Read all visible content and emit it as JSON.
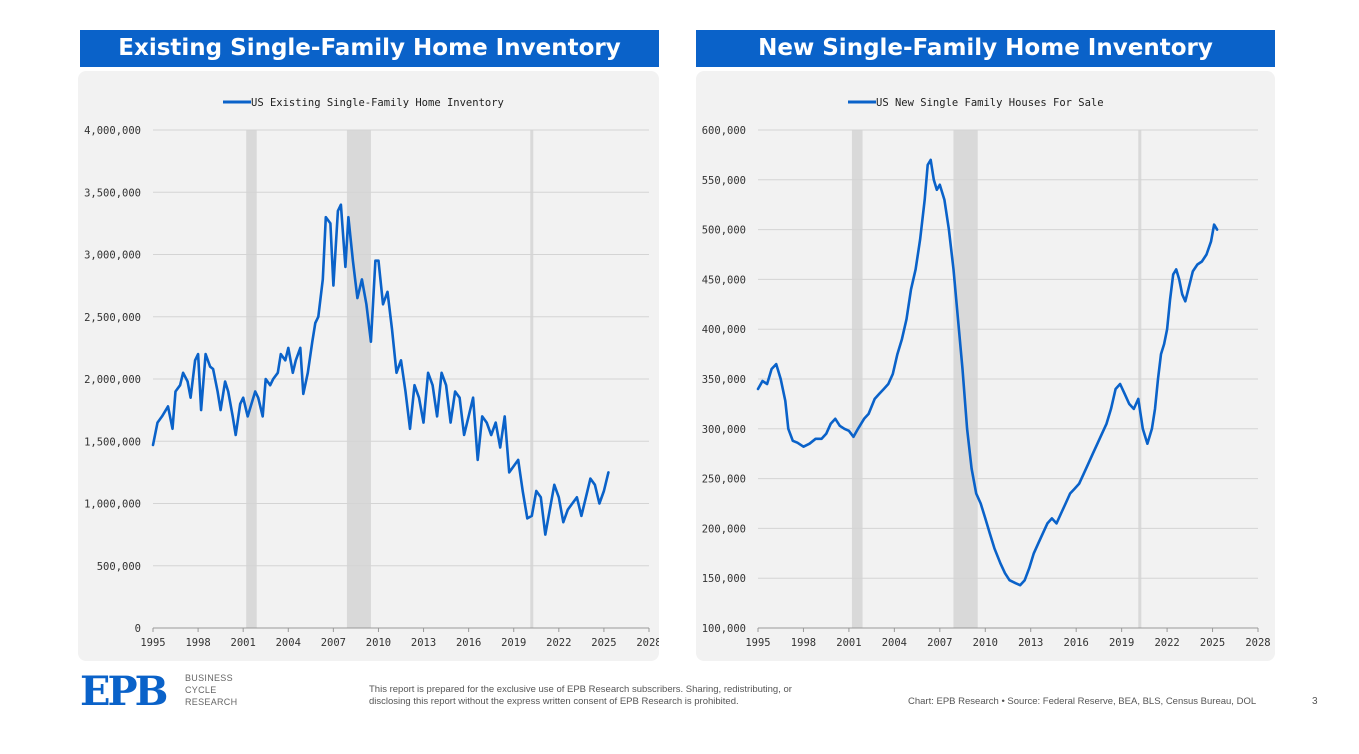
{
  "titles": [
    "Existing Single-Family Home Inventory",
    "New Single-Family Home Inventory"
  ],
  "colors": {
    "accent": "#0a62c9",
    "line": "#0a62c9",
    "recession": "#d9d9d9",
    "panel": "#f2f2f2"
  },
  "chart_data": [
    {
      "type": "line",
      "title": "",
      "legend": "US Existing Single-Family Home Inventory",
      "legend_position": "top-center",
      "xlim": [
        1995,
        2028
      ],
      "ylim": [
        0,
        4000000
      ],
      "x_ticks": [
        1995,
        1998,
        2001,
        2004,
        2007,
        2010,
        2013,
        2016,
        2019,
        2022,
        2025,
        2028
      ],
      "x_tick_labels": [
        "1995",
        "1998",
        "2001",
        "2004",
        "2007",
        "2010",
        "2013",
        "2016",
        "2019",
        "2022",
        "2025",
        "2028"
      ],
      "y_ticks": [
        0,
        500000,
        1000000,
        1500000,
        2000000,
        2500000,
        3000000,
        3500000,
        4000000
      ],
      "y_tick_labels": [
        "0",
        "500,000",
        "1,000,000",
        "1,500,000",
        "2,000,000",
        "2,500,000",
        "3,000,000",
        "3,500,000",
        "4,000,000"
      ],
      "grid": true,
      "recessions": [
        [
          2001.2,
          2001.9
        ],
        [
          2007.9,
          2009.5
        ],
        [
          2020.1,
          2020.3
        ]
      ],
      "series": [
        {
          "name": "US Existing Single-Family Home Inventory",
          "x": [
            1995.0,
            1995.3,
            1995.6,
            1996.0,
            1996.3,
            1996.5,
            1996.8,
            1997.0,
            1997.3,
            1997.5,
            1997.8,
            1998.0,
            1998.2,
            1998.5,
            1998.8,
            1999.0,
            1999.3,
            1999.5,
            1999.8,
            2000.0,
            2000.3,
            2000.5,
            2000.8,
            2001.0,
            2001.3,
            2001.5,
            2001.8,
            2002.0,
            2002.3,
            2002.5,
            2002.8,
            2003.0,
            2003.3,
            2003.5,
            2003.8,
            2004.0,
            2004.3,
            2004.5,
            2004.8,
            2005.0,
            2005.3,
            2005.6,
            2005.8,
            2006.0,
            2006.3,
            2006.5,
            2006.8,
            2007.0,
            2007.3,
            2007.5,
            2007.8,
            2008.0,
            2008.3,
            2008.6,
            2008.9,
            2009.2,
            2009.5,
            2009.8,
            2010.0,
            2010.3,
            2010.6,
            2010.9,
            2011.2,
            2011.5,
            2011.8,
            2012.1,
            2012.4,
            2012.7,
            2013.0,
            2013.3,
            2013.6,
            2013.9,
            2014.2,
            2014.5,
            2014.8,
            2015.1,
            2015.4,
            2015.7,
            2016.0,
            2016.3,
            2016.6,
            2016.9,
            2017.2,
            2017.5,
            2017.8,
            2018.1,
            2018.4,
            2018.7,
            2019.0,
            2019.3,
            2019.6,
            2019.9,
            2020.2,
            2020.5,
            2020.8,
            2021.1,
            2021.4,
            2021.7,
            2022.0,
            2022.3,
            2022.6,
            2022.9,
            2023.2,
            2023.5,
            2023.8,
            2024.1,
            2024.4,
            2024.7,
            2025.0,
            2025.3
          ],
          "y": [
            1470000,
            1650000,
            1700000,
            1780000,
            1600000,
            1900000,
            1950000,
            2050000,
            1980000,
            1850000,
            2150000,
            2200000,
            1750000,
            2200000,
            2100000,
            2080000,
            1900000,
            1750000,
            1980000,
            1900000,
            1700000,
            1550000,
            1800000,
            1850000,
            1700000,
            1780000,
            1900000,
            1850000,
            1700000,
            2000000,
            1950000,
            2000000,
            2050000,
            2200000,
            2150000,
            2250000,
            2050000,
            2150000,
            2250000,
            1880000,
            2050000,
            2300000,
            2450000,
            2500000,
            2800000,
            3300000,
            3250000,
            2750000,
            3350000,
            3400000,
            2900000,
            3300000,
            2950000,
            2650000,
            2800000,
            2600000,
            2300000,
            2950000,
            2950000,
            2600000,
            2700000,
            2400000,
            2050000,
            2150000,
            1900000,
            1600000,
            1950000,
            1850000,
            1650000,
            2050000,
            1950000,
            1700000,
            2050000,
            1950000,
            1650000,
            1900000,
            1850000,
            1550000,
            1700000,
            1850000,
            1350000,
            1700000,
            1650000,
            1550000,
            1650000,
            1450000,
            1700000,
            1250000,
            1300000,
            1350000,
            1100000,
            880000,
            900000,
            1100000,
            1050000,
            750000,
            950000,
            1150000,
            1050000,
            850000,
            950000,
            1000000,
            1050000,
            900000,
            1050000,
            1200000,
            1150000,
            1000000,
            1100000,
            1250000
          ]
        }
      ]
    },
    {
      "type": "line",
      "title": "",
      "legend": "US New Single Family Houses For Sale",
      "legend_position": "top-center",
      "xlim": [
        1995,
        2028
      ],
      "ylim": [
        100000,
        600000
      ],
      "x_ticks": [
        1995,
        1998,
        2001,
        2004,
        2007,
        2010,
        2013,
        2016,
        2019,
        2022,
        2025,
        2028
      ],
      "x_tick_labels": [
        "1995",
        "1998",
        "2001",
        "2004",
        "2007",
        "2010",
        "2013",
        "2016",
        "2019",
        "2022",
        "2025",
        "2028"
      ],
      "y_ticks": [
        100000,
        150000,
        200000,
        250000,
        300000,
        350000,
        400000,
        450000,
        500000,
        550000,
        600000
      ],
      "y_tick_labels": [
        "100,000",
        "150,000",
        "200,000",
        "250,000",
        "300,000",
        "350,000",
        "400,000",
        "450,000",
        "500,000",
        "550,000",
        "600,000"
      ],
      "grid": true,
      "recessions": [
        [
          2001.2,
          2001.9
        ],
        [
          2007.9,
          2009.5
        ],
        [
          2020.1,
          2020.3
        ]
      ],
      "series": [
        {
          "name": "US New Single Family Houses For Sale",
          "x": [
            1995.0,
            1995.3,
            1995.6,
            1995.9,
            1996.2,
            1996.5,
            1996.8,
            1997.0,
            1997.3,
            1997.6,
            1998.0,
            1998.4,
            1998.8,
            1999.2,
            1999.5,
            1999.8,
            2000.1,
            2000.4,
            2000.7,
            2001.0,
            2001.3,
            2001.6,
            2002.0,
            2002.3,
            2002.7,
            2003.0,
            2003.3,
            2003.6,
            2003.9,
            2004.2,
            2004.5,
            2004.8,
            2005.1,
            2005.4,
            2005.7,
            2006.0,
            2006.2,
            2006.4,
            2006.6,
            2006.8,
            2007.0,
            2007.3,
            2007.6,
            2007.9,
            2008.2,
            2008.5,
            2008.8,
            2009.1,
            2009.4,
            2009.7,
            2010.0,
            2010.3,
            2010.6,
            2011.0,
            2011.3,
            2011.6,
            2012.0,
            2012.3,
            2012.6,
            2012.9,
            2013.2,
            2013.5,
            2013.8,
            2014.1,
            2014.4,
            2014.7,
            2015.0,
            2015.3,
            2015.6,
            2015.9,
            2016.2,
            2016.5,
            2016.8,
            2017.1,
            2017.4,
            2017.7,
            2018.0,
            2018.3,
            2018.6,
            2018.9,
            2019.2,
            2019.5,
            2019.8,
            2020.1,
            2020.4,
            2020.7,
            2021.0,
            2021.2,
            2021.4,
            2021.6,
            2021.8,
            2022.0,
            2022.2,
            2022.4,
            2022.6,
            2022.8,
            2023.0,
            2023.2,
            2023.4,
            2023.7,
            2024.0,
            2024.3,
            2024.6,
            2024.9,
            2025.1,
            2025.3
          ],
          "y": [
            340000,
            348000,
            345000,
            360000,
            365000,
            350000,
            328000,
            300000,
            288000,
            286000,
            282000,
            285000,
            290000,
            290000,
            295000,
            305000,
            310000,
            303000,
            300000,
            298000,
            292000,
            300000,
            310000,
            315000,
            330000,
            335000,
            340000,
            345000,
            355000,
            375000,
            390000,
            410000,
            440000,
            460000,
            490000,
            530000,
            565000,
            570000,
            550000,
            540000,
            545000,
            530000,
            500000,
            460000,
            410000,
            360000,
            300000,
            260000,
            235000,
            225000,
            210000,
            195000,
            180000,
            165000,
            155000,
            148000,
            145000,
            143000,
            148000,
            160000,
            175000,
            185000,
            195000,
            205000,
            210000,
            205000,
            215000,
            225000,
            235000,
            240000,
            245000,
            255000,
            265000,
            275000,
            285000,
            295000,
            305000,
            320000,
            340000,
            345000,
            335000,
            325000,
            320000,
            330000,
            300000,
            285000,
            300000,
            320000,
            350000,
            375000,
            385000,
            400000,
            430000,
            455000,
            460000,
            450000,
            435000,
            428000,
            440000,
            458000,
            465000,
            468000,
            475000,
            488000,
            505000,
            500000
          ]
        }
      ]
    }
  ],
  "footer": {
    "logo": "EPB",
    "logo_sub": [
      "BUSINESS",
      "CYCLE",
      "RESEARCH"
    ],
    "disclaimer_line1": "This report is prepared for the exclusive use of EPB Research subscribers. Sharing, redistributing, or",
    "disclaimer_line2": "disclosing this report without the express written consent of EPB Research is prohibited.",
    "source": "Chart: EPB Research  •  Source: Federal Reserve, BEA, BLS, Census Bureau, DOL",
    "page": "3"
  }
}
